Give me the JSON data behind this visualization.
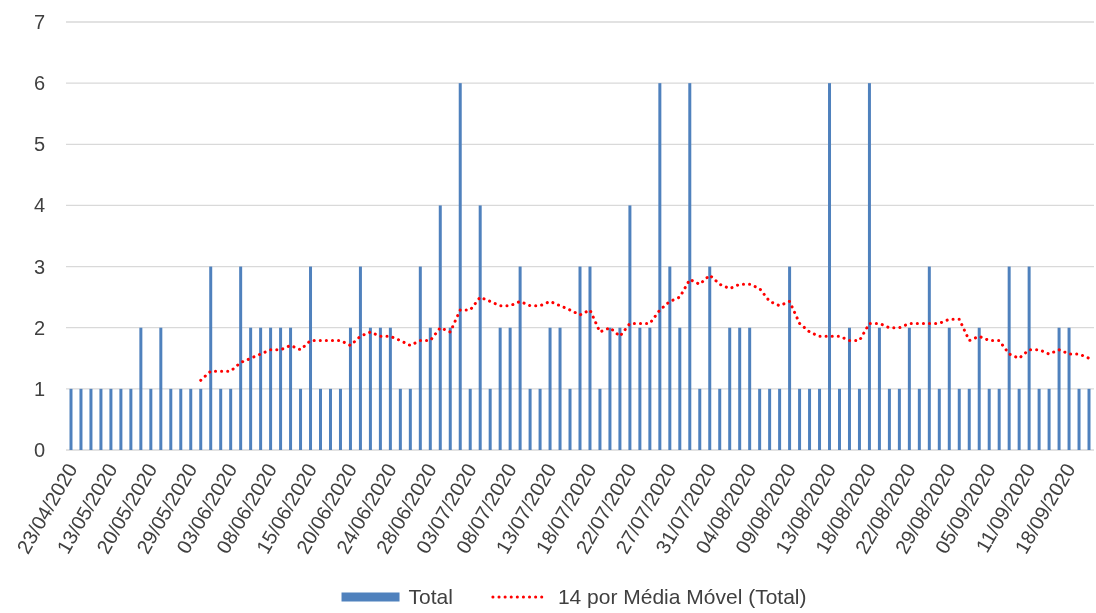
{
  "chart_data": {
    "type": "bar",
    "categories": [
      "23/04/2020",
      null,
      null,
      null,
      "13/05/2020",
      null,
      null,
      null,
      "20/05/2020",
      null,
      null,
      null,
      "29/05/2020",
      null,
      null,
      null,
      "03/06/2020",
      null,
      null,
      null,
      "08/06/2020",
      null,
      null,
      null,
      "15/06/2020",
      null,
      null,
      null,
      "20/06/2020",
      null,
      null,
      null,
      "24/06/2020",
      null,
      null,
      null,
      "28/06/2020",
      null,
      null,
      null,
      "03/07/2020",
      null,
      null,
      null,
      "08/07/2020",
      null,
      null,
      null,
      "13/07/2020",
      null,
      null,
      null,
      "18/07/2020",
      null,
      null,
      null,
      "22/07/2020",
      null,
      null,
      null,
      "27/07/2020",
      null,
      null,
      null,
      "31/07/2020",
      null,
      null,
      null,
      "04/08/2020",
      null,
      null,
      null,
      "09/08/2020",
      null,
      null,
      null,
      "13/08/2020",
      null,
      null,
      null,
      "18/08/2020",
      null,
      null,
      null,
      "22/08/2020",
      null,
      null,
      null,
      "29/08/2020",
      null,
      null,
      null,
      "05/09/2020",
      null,
      null,
      null,
      "11/09/2020",
      null,
      null,
      null,
      "18/09/2020",
      null,
      null
    ],
    "series": [
      {
        "name": "Total",
        "color": "#4f81bd",
        "values": [
          1,
          1,
          1,
          1,
          1,
          1,
          1,
          2,
          1,
          2,
          1,
          1,
          1,
          1,
          3,
          1,
          1,
          3,
          2,
          2,
          2,
          2,
          2,
          1,
          3,
          1,
          1,
          1,
          2,
          3,
          2,
          2,
          2,
          1,
          1,
          3,
          2,
          4,
          2,
          6,
          1,
          4,
          1,
          2,
          2,
          3,
          1,
          1,
          2,
          2,
          1,
          3,
          3,
          1,
          2,
          2,
          4,
          2,
          2,
          6,
          3,
          2,
          6,
          1,
          3,
          1,
          2,
          2,
          2,
          1,
          1,
          1,
          3,
          1,
          1,
          1,
          6,
          1,
          2,
          1,
          6,
          2,
          1,
          1,
          2,
          1,
          3,
          1,
          2,
          1,
          1,
          2,
          1,
          1,
          3,
          1,
          3,
          1,
          1,
          2,
          2,
          1,
          1
        ]
      },
      {
        "name": "14 por Média Móvel (Total)",
        "type": "line",
        "color": "#ff0000",
        "line_style": "dotted",
        "values": [
          null,
          null,
          null,
          null,
          null,
          null,
          null,
          null,
          null,
          null,
          null,
          null,
          null,
          1.14,
          1.29,
          1.29,
          1.29,
          1.43,
          1.5,
          1.57,
          1.64,
          1.64,
          1.71,
          1.64,
          1.79,
          1.79,
          1.79,
          1.79,
          1.71,
          1.86,
          1.93,
          1.86,
          1.86,
          1.79,
          1.71,
          1.79,
          1.79,
          2,
          1.93,
          2.29,
          2.29,
          2.5,
          2.43,
          2.36,
          2.36,
          2.43,
          2.36,
          2.36,
          2.43,
          2.36,
          2.29,
          2.21,
          2.29,
          1.93,
          2,
          1.86,
          2.07,
          2.07,
          2.07,
          2.29,
          2.43,
          2.5,
          2.79,
          2.71,
          2.86,
          2.71,
          2.64,
          2.71,
          2.71,
          2.64,
          2.43,
          2.36,
          2.43,
          2.07,
          1.93,
          1.86,
          1.86,
          1.86,
          1.79,
          1.79,
          2.07,
          2.07,
          2,
          2,
          2.07,
          2.07,
          2.07,
          2.07,
          2.14,
          2.14,
          1.79,
          1.86,
          1.79,
          1.79,
          1.57,
          1.5,
          1.64,
          1.64,
          1.57,
          1.64,
          1.57,
          1.57,
          1.5
        ]
      }
    ],
    "ylim": [
      0,
      7
    ],
    "yticks": [
      0,
      1,
      2,
      3,
      4,
      5,
      6,
      7
    ],
    "grid": "y",
    "legend": "bottom"
  }
}
